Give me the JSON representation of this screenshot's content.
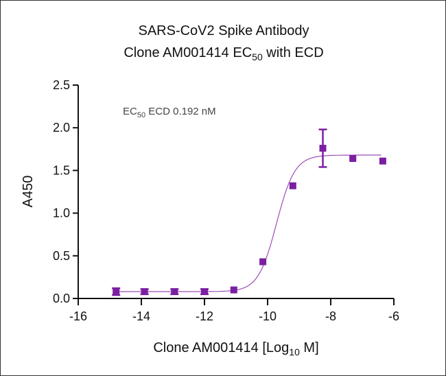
{
  "chart_data": {
    "type": "scatter",
    "title_line1": "SARS-CoV2 Spike Antibody",
    "title_line2_prefix": "Clone AM001414 EC",
    "title_line2_sub": "50",
    "title_line2_suffix": "  with ECD",
    "xlabel_prefix": "Clone AM001414 [Log",
    "xlabel_sub": "10",
    "xlabel_suffix": " M]",
    "ylabel": "A450",
    "xlim": [
      -16,
      -6
    ],
    "ylim": [
      0,
      2.5
    ],
    "xticks": [
      -16,
      -14,
      -12,
      -10,
      -8,
      -6
    ],
    "xtick_labels": [
      "-16",
      "-14",
      "-12",
      "-10",
      "-8",
      "-6"
    ],
    "yticks": [
      0,
      0.5,
      1.0,
      1.5,
      2.0,
      2.5
    ],
    "ytick_labels": [
      "0.0",
      "0.5",
      "1.0",
      "1.5",
      "2.0",
      "2.5"
    ],
    "grid": false,
    "annotation": {
      "prefix": "EC",
      "sub": "50",
      "suffix": " ECD 0.192 nM"
    },
    "series": [
      {
        "name": "ECD",
        "color": "#7B1FA2",
        "marker": "square",
        "x": [
          -14.8,
          -13.9,
          -12.95,
          -12.0,
          -11.07,
          -10.15,
          -9.2,
          -8.25,
          -7.3,
          -6.35
        ],
        "y": [
          0.08,
          0.08,
          0.08,
          0.08,
          0.1,
          0.43,
          1.32,
          1.76,
          1.64,
          1.61
        ],
        "error": [
          0.04,
          0.03,
          0.03,
          0.03,
          0.0,
          0.0,
          0.0,
          0.22,
          0.0,
          0.0
        ]
      }
    ],
    "fit": {
      "type": "4PL",
      "bottom": 0.08,
      "top": 1.68,
      "log_ec50": -9.717,
      "hill": 1.5,
      "color": "#9C4DB5"
    }
  }
}
